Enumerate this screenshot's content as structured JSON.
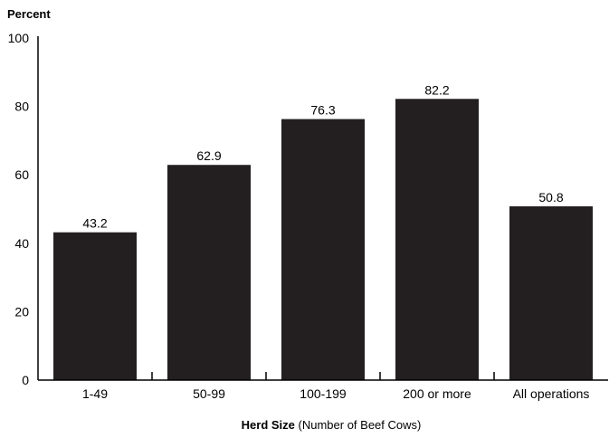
{
  "chart_data": {
    "type": "bar",
    "title": "",
    "ylabel": "Percent",
    "xlabel": {
      "bold": "Herd Size",
      "rest": " (Number of Beef Cows)"
    },
    "categories": [
      "1-49",
      "50-99",
      "100-199",
      "200 or more",
      "All operations"
    ],
    "values": [
      43.2,
      62.9,
      76.3,
      82.2,
      50.8
    ],
    "data_labels": [
      "43.2",
      "62.9",
      "76.3",
      "82.2",
      "50.8"
    ],
    "ylim": [
      0,
      100
    ],
    "yticks": [
      0,
      20,
      40,
      60,
      80,
      100
    ],
    "grid": false,
    "legend": "none",
    "bar_color": "#231f20",
    "axis_color": "#000000"
  }
}
